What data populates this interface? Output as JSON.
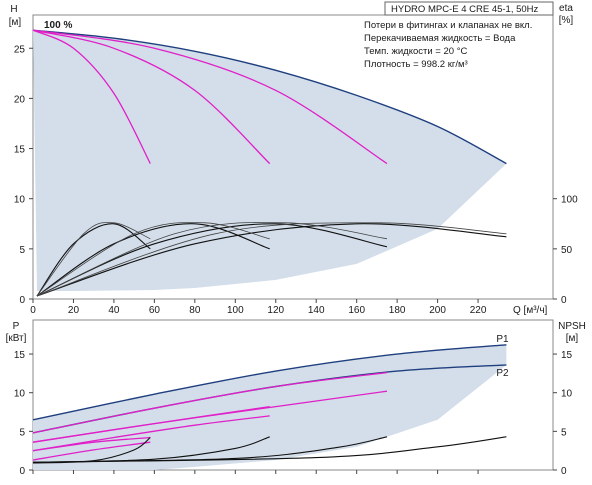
{
  "chart_data": [
    {
      "type": "line",
      "title": "HYDRO MPC-E 4 CRE 45-1, 50Hz",
      "notes": [
        "Потери в фитингах и клапанах не вкл.",
        "Перекачиваемая жидкость = Вода",
        "Темп. жидкости = 20 °C",
        "Плотность = 998.2 кг/м³"
      ],
      "speed_label": "100 %",
      "xlabel": "Q [м³/ч]",
      "ylabel": [
        "H",
        "[м]"
      ],
      "y2label": [
        "eta",
        "[%]"
      ],
      "xlim": [
        0,
        240
      ],
      "ylim": [
        0,
        27
      ],
      "y2ticks": [
        0,
        50,
        100
      ],
      "xticks": [
        0,
        20,
        40,
        60,
        80,
        100,
        120,
        140,
        160,
        180,
        200,
        220
      ],
      "yticks": [
        0,
        5,
        10,
        15,
        20,
        25
      ],
      "grid": false,
      "series": [
        {
          "color": "#1f3f7f",
          "x": [
            0,
            40,
            80,
            120,
            160,
            200,
            234
          ],
          "y": [
            26.8,
            26.0,
            24.7,
            22.8,
            20.3,
            17.2,
            13.5
          ]
        },
        {
          "color": "#e020c8",
          "x": [
            0,
            20,
            40,
            58
          ],
          "y": [
            26.8,
            25.0,
            20.5,
            13.5
          ]
        },
        {
          "color": "#e020c8",
          "x": [
            0,
            40,
            80,
            117
          ],
          "y": [
            26.8,
            25.0,
            20.8,
            13.5
          ]
        },
        {
          "color": "#e020c8",
          "x": [
            0,
            60,
            120,
            175
          ],
          "y": [
            26.8,
            25.0,
            20.8,
            13.5
          ]
        },
        {
          "color": "#111111",
          "x": [
            2,
            20,
            40,
            58
          ],
          "y": [
            0.3,
            5.5,
            7.5,
            5.0
          ]
        },
        {
          "color": "#111111",
          "x": [
            2,
            40,
            80,
            117
          ],
          "y": [
            0.3,
            5.5,
            7.5,
            5.0
          ]
        },
        {
          "color": "#111111",
          "x": [
            2,
            60,
            120,
            175
          ],
          "y": [
            0.3,
            5.5,
            7.5,
            5.2
          ]
        },
        {
          "color": "#111111",
          "x": [
            2,
            80,
            160,
            234
          ],
          "y": [
            0.3,
            5.5,
            7.5,
            6.2
          ]
        }
      ]
    },
    {
      "type": "line",
      "xlim": [
        0,
        240
      ],
      "ylim": [
        0,
        19
      ],
      "ylabel": [
        "P",
        "[кВт]"
      ],
      "y2label": [
        "NPSH",
        "[м]"
      ],
      "yticks": [
        0,
        5,
        10,
        15
      ],
      "grid": false,
      "curve_labels": [
        "P1",
        "P2"
      ],
      "series": [
        {
          "name": "P1",
          "color": "#1f3f7f",
          "x": [
            0,
            60,
            120,
            180,
            234
          ],
          "y": [
            6.5,
            9.8,
            12.8,
            15.0,
            16.2
          ]
        },
        {
          "name": "P2",
          "color": "#1f3f7f",
          "x": [
            0,
            60,
            120,
            180,
            234
          ],
          "y": [
            4.8,
            8.0,
            10.8,
            12.8,
            13.6
          ]
        },
        {
          "color": "#e020c8",
          "x": [
            0,
            60,
            120,
            175
          ],
          "y": [
            4.8,
            8.0,
            10.8,
            12.6
          ]
        },
        {
          "color": "#e020c8",
          "x": [
            0,
            60,
            120,
            175
          ],
          "y": [
            3.6,
            6.0,
            8.2,
            10.2
          ]
        },
        {
          "color": "#e020c8",
          "x": [
            0,
            60,
            117
          ],
          "y": [
            3.6,
            6.0,
            8.2
          ]
        },
        {
          "color": "#e020c8",
          "x": [
            0,
            40,
            80,
            117
          ],
          "y": [
            2.5,
            4.2,
            5.8,
            7.0
          ]
        },
        {
          "color": "#e020c8",
          "x": [
            0,
            30,
            58
          ],
          "y": [
            2.5,
            3.6,
            4.2
          ]
        },
        {
          "color": "#e020c8",
          "x": [
            0,
            30,
            58
          ],
          "y": [
            1.3,
            2.6,
            3.6
          ]
        },
        {
          "color": "#111111",
          "x": [
            0,
            30,
            50,
            58
          ],
          "y": [
            0.9,
            1.2,
            2.6,
            4.2
          ]
        },
        {
          "color": "#111111",
          "x": [
            0,
            60,
            100,
            117
          ],
          "y": [
            1.0,
            1.4,
            2.8,
            4.3
          ]
        },
        {
          "color": "#111111",
          "x": [
            0,
            100,
            150,
            175
          ],
          "y": [
            1.0,
            1.5,
            2.9,
            4.3
          ]
        },
        {
          "color": "#111111",
          "x": [
            0,
            140,
            200,
            234
          ],
          "y": [
            1.0,
            1.6,
            3.0,
            4.3
          ]
        }
      ]
    }
  ]
}
